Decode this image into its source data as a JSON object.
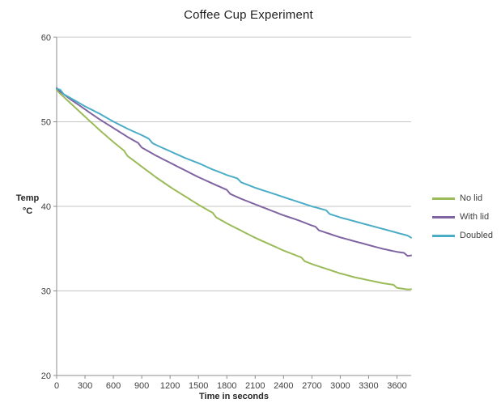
{
  "chart_data": {
    "type": "line",
    "title": "Coffee Cup Experiment",
    "xlabel": "Time in seconds",
    "ylabel": "Temp\n°C",
    "x_range": [
      0,
      3750
    ],
    "y_range": [
      20,
      60
    ],
    "x_ticks": [
      0,
      300,
      600,
      900,
      1200,
      1500,
      1800,
      2100,
      2400,
      2700,
      3000,
      3300,
      3600
    ],
    "y_ticks": [
      20,
      30,
      40,
      50,
      60
    ],
    "grid_y": [
      30,
      40,
      50,
      60
    ],
    "grid_on": true,
    "legend_position": "right",
    "x": [
      0,
      150,
      300,
      450,
      600,
      750,
      900,
      1050,
      1200,
      1350,
      1500,
      1650,
      1800,
      1950,
      2100,
      2250,
      2400,
      2550,
      2700,
      2850,
      3000,
      3150,
      3300,
      3450,
      3600,
      3750
    ],
    "series": [
      {
        "name": "No lid",
        "color": "#9BBB59",
        "values": [
          53.8,
          52.2,
          50.6,
          49.0,
          47.5,
          46.1,
          44.8,
          43.5,
          42.3,
          41.2,
          40.1,
          39.1,
          38.1,
          37.2,
          36.3,
          35.5,
          34.7,
          34.0,
          33.3,
          32.7,
          32.1,
          31.6,
          31.2,
          30.8,
          30.5,
          30.2
        ]
      },
      {
        "name": "With lid",
        "color": "#8064A2",
        "values": [
          54.0,
          52.7,
          51.5,
          50.3,
          49.2,
          48.1,
          47.1,
          46.1,
          45.2,
          44.3,
          43.4,
          42.6,
          41.8,
          41.0,
          40.3,
          39.6,
          38.9,
          38.3,
          37.6,
          37.0,
          36.4,
          35.9,
          35.4,
          34.9,
          34.5,
          34.2
        ]
      },
      {
        "name": "Doubled",
        "color": "#4BACC6",
        "values": [
          53.9,
          52.9,
          51.9,
          51.0,
          50.0,
          49.1,
          48.3,
          47.4,
          46.6,
          45.8,
          45.1,
          44.3,
          43.6,
          43.0,
          42.3,
          41.7,
          41.1,
          40.5,
          39.9,
          39.4,
          38.8,
          38.3,
          37.8,
          37.3,
          36.8,
          36.3
        ]
      }
    ],
    "style": {
      "grid_color": "#C6C6C6",
      "axis_color": "#8C8C8C",
      "tick_text_color": "#404040",
      "title_color": "#1F1F1F"
    }
  }
}
